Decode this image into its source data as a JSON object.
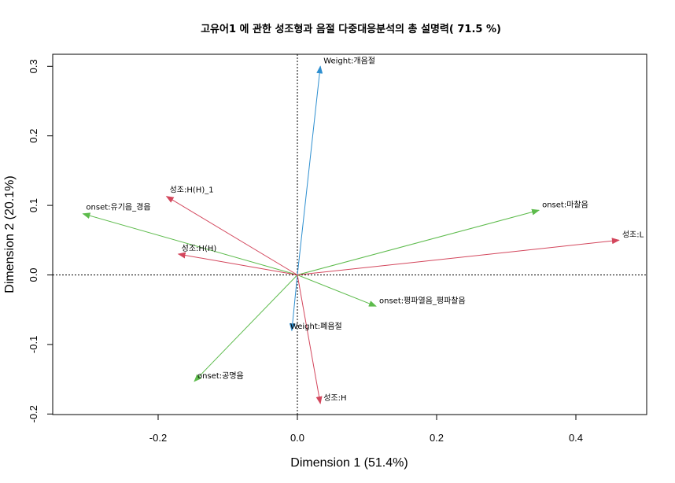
{
  "chart_data": {
    "type": "biplot",
    "title": "고유어1 에 관한 성조형과 음절 다중대응분석의 총 설명력( 71.5 %)",
    "xlabel": "Dimension 1 (51.4%)",
    "ylabel": "Dimension 2 (20.1%)",
    "xlim": [
      -0.35,
      0.5
    ],
    "ylim": [
      -0.2,
      0.32
    ],
    "x_ticks": [
      -0.2,
      0.0,
      0.2,
      0.4
    ],
    "x_tick_labels": [
      "-0.2",
      "0.0",
      "0.2",
      "0.4"
    ],
    "y_ticks": [
      -0.2,
      -0.1,
      0.0,
      0.1,
      0.2,
      0.3
    ],
    "y_tick_labels": [
      "-0.2",
      "-0.1",
      "0.0",
      "0.1",
      "0.2",
      "0.3"
    ],
    "reference_lines": {
      "x": 0,
      "y": 0,
      "style": "dotted"
    },
    "groups": [
      {
        "group": "Weight",
        "color": "#2E8FD0",
        "points": [
          {
            "label": "Weight:개음절",
            "x": 0.033,
            "y": 0.3
          },
          {
            "label": "Weight:폐음절",
            "x": -0.008,
            "y": -0.08
          }
        ]
      },
      {
        "group": "onset",
        "color": "#5DBB4C",
        "points": [
          {
            "label": "onset:유기음_경음",
            "x": -0.308,
            "y": 0.088
          },
          {
            "label": "onset:마찰음",
            "x": 0.347,
            "y": 0.093
          },
          {
            "label": "onset:평파열음_평파찰음",
            "x": 0.113,
            "y": -0.045
          },
          {
            "label": "onset:공명음",
            "x": -0.148,
            "y": -0.153
          }
        ]
      },
      {
        "group": "성조",
        "color": "#D3465C",
        "points": [
          {
            "label": "성조:H(H)_1",
            "x": -0.188,
            "y": 0.113
          },
          {
            "label": "성조:H(H)",
            "x": -0.171,
            "y": 0.03
          },
          {
            "label": "성조:L",
            "x": 0.462,
            "y": 0.05
          },
          {
            "label": "성조:H",
            "x": 0.033,
            "y": -0.185
          }
        ]
      }
    ]
  }
}
